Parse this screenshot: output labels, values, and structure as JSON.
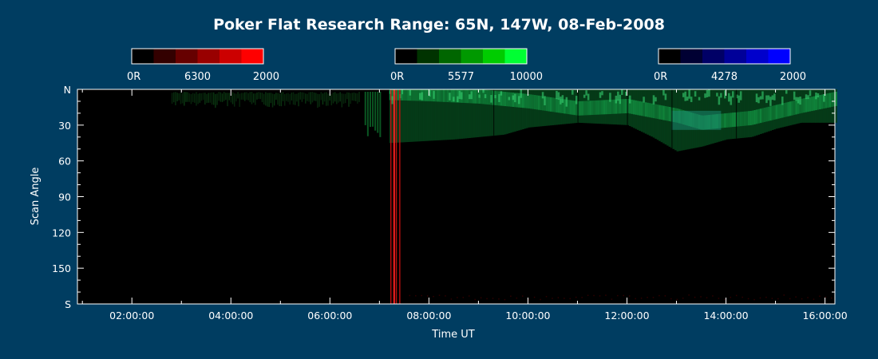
{
  "chart_data": {
    "type": "heatmap",
    "title": "Poker Flat Research Range: 65N, 147W, 08-Feb-2008",
    "xlabel": "Time UT",
    "ylabel": "Scan Angle",
    "x_ticks": [
      "02:00:00",
      "04:00:00",
      "06:00:00",
      "08:00:00",
      "10:00:00",
      "12:00:00",
      "14:00:00",
      "16:00:00"
    ],
    "x_tick_hours": [
      2,
      4,
      6,
      8,
      10,
      12,
      14,
      16
    ],
    "xlim_hours": [
      0.9,
      16.2
    ],
    "y_ticks": [
      "N",
      "30",
      "60",
      "90",
      "120",
      "150",
      "S"
    ],
    "y_tick_values": [
      0,
      30,
      60,
      90,
      120,
      150,
      180
    ],
    "ylim": [
      0,
      180
    ],
    "color_scales": [
      {
        "name": "6300",
        "min_label": "0R",
        "max_label": "2000",
        "colors": [
          "#000000",
          "#330000",
          "#660000",
          "#990000",
          "#cc0000",
          "#ff0000"
        ]
      },
      {
        "name": "5577",
        "min_label": "0R",
        "max_label": "10000",
        "colors": [
          "#000000",
          "#003300",
          "#006600",
          "#009900",
          "#00cc00",
          "#00ff33"
        ]
      },
      {
        "name": "4278",
        "min_label": "0R",
        "max_label": "2000",
        "colors": [
          "#000000",
          "#000033",
          "#000066",
          "#000099",
          "#0000cc",
          "#0000ff"
        ]
      }
    ],
    "features": {
      "green_5577_band": {
        "upper_edge": [
          [
            7.2,
            0
          ],
          [
            16.2,
            0
          ]
        ],
        "lower_edge": [
          [
            7.2,
            45
          ],
          [
            8.5,
            42
          ],
          [
            9.5,
            38
          ],
          [
            10.0,
            32
          ],
          [
            11.0,
            28
          ],
          [
            12.0,
            30
          ],
          [
            12.5,
            40
          ],
          [
            13.0,
            52
          ],
          [
            13.5,
            48
          ],
          [
            14.0,
            42
          ],
          [
            14.5,
            40
          ],
          [
            15.0,
            33
          ],
          [
            15.5,
            28
          ],
          [
            16.2,
            28
          ]
        ],
        "bright_core": [
          [
            7.2,
            3
          ],
          [
            8.0,
            4
          ],
          [
            9.0,
            6
          ],
          [
            10.0,
            10
          ],
          [
            11.0,
            16
          ],
          [
            12.0,
            14
          ],
          [
            13.0,
            22
          ],
          [
            13.5,
            28
          ],
          [
            14.5,
            24
          ],
          [
            15.5,
            14
          ],
          [
            16.2,
            8
          ]
        ]
      },
      "early_faint_green": {
        "start": 2.8,
        "end": 6.6,
        "angle": 8
      },
      "precursor_green_streaks": [
        6.7,
        6.75,
        6.8,
        6.85,
        6.9,
        6.95,
        7.0
      ],
      "red_6300_streaks": [
        7.22,
        7.28,
        7.33,
        7.4
      ]
    }
  }
}
